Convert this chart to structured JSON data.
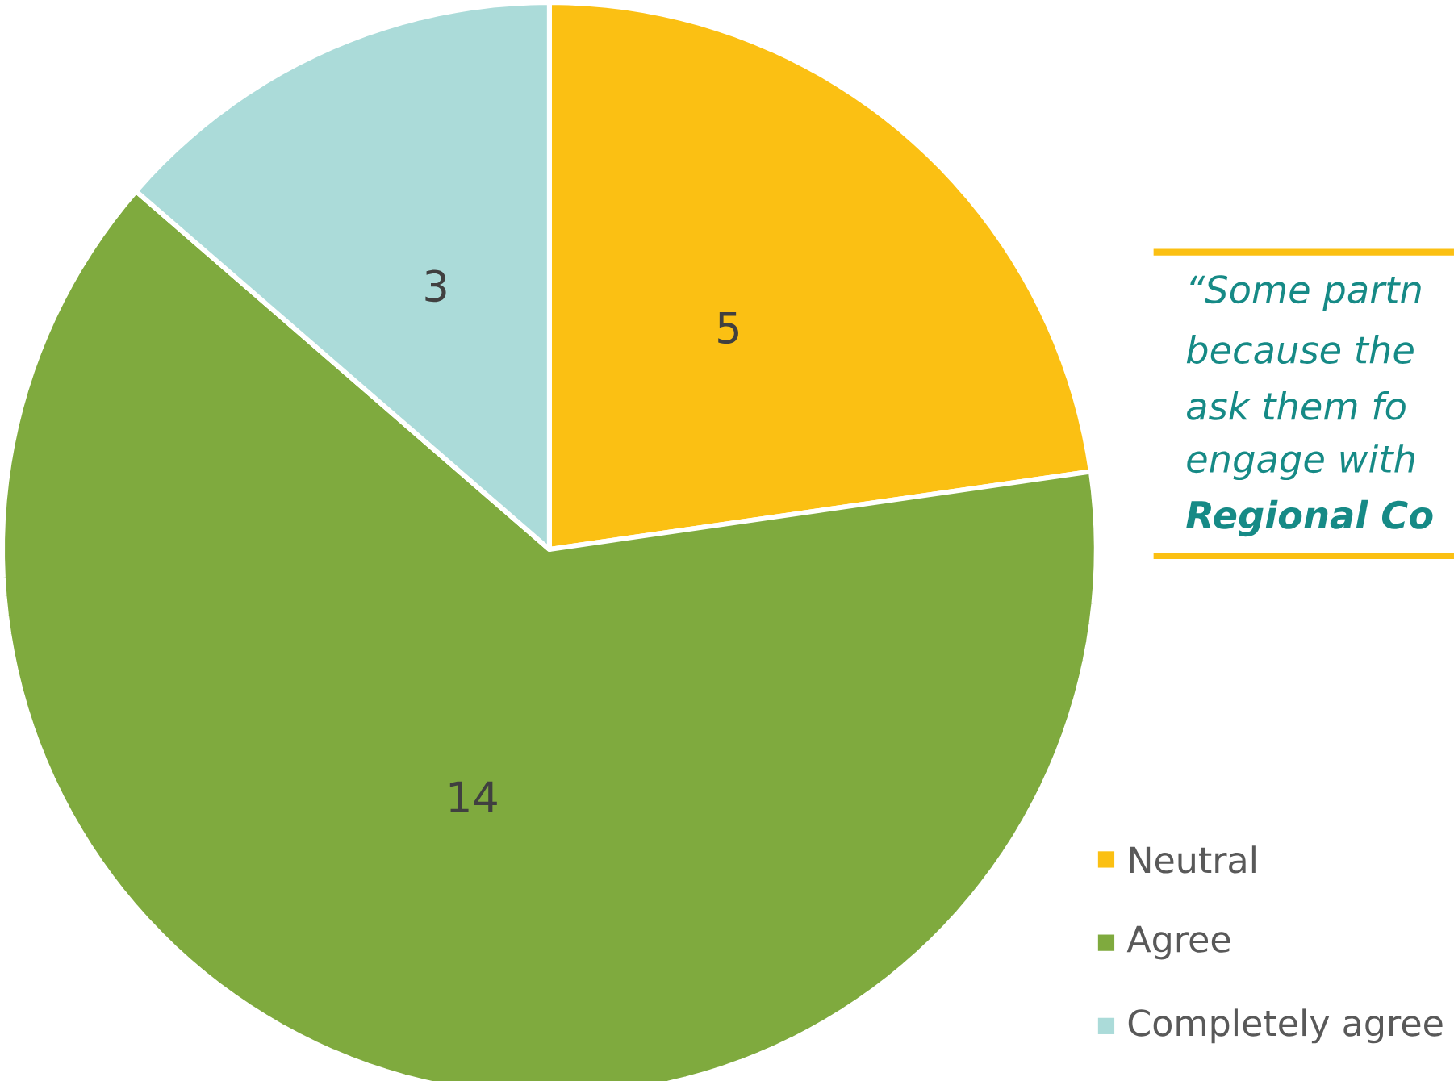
{
  "chart_data": {
    "type": "pie",
    "categories": [
      "Neutral",
      "Agree",
      "Completely agree"
    ],
    "values": [
      5,
      14,
      3
    ],
    "colors": [
      "#fbc013",
      "#7faa3e",
      "#abdbd9"
    ],
    "data_labels": true,
    "legend": "bottom right",
    "annotations": [
      "“Some partn",
      "because the",
      "ask them fo",
      "engage with",
      "**Regional Co**"
    ]
  }
}
